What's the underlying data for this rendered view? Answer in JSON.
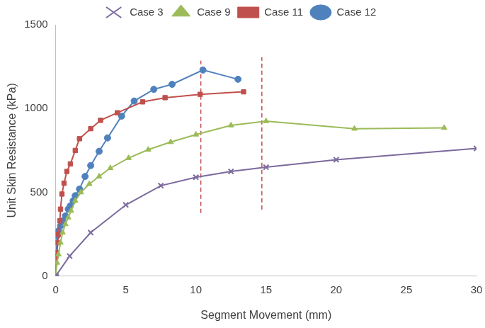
{
  "chart_data": {
    "type": "line",
    "x_label": "Segment Movement (mm)",
    "y_label": "Unit Skin Resistance (kPa)",
    "xlim": [
      0,
      30
    ],
    "xticks": [
      0,
      5,
      10,
      15,
      20,
      25,
      30
    ],
    "ylim": [
      0,
      1500
    ],
    "yticks": [
      0,
      500,
      1000,
      1500
    ],
    "grid": false,
    "legend": "top",
    "series": [
      {
        "name": "Case 3",
        "color": "#7b6a9c",
        "marker": "x",
        "x": [
          0,
          1,
          2.5,
          5,
          7.5,
          10,
          12.5,
          15,
          20,
          30
        ],
        "values": [
          0,
          120,
          260,
          425,
          540,
          590,
          625,
          650,
          695,
          762
        ]
      },
      {
        "name": "Case 9",
        "color": "#9bbb59",
        "marker": "triangle",
        "x": [
          0,
          0.1,
          0.2,
          0.35,
          0.5,
          0.7,
          0.9,
          1.1,
          1.4,
          1.8,
          2.4,
          3.1,
          3.9,
          5.2,
          6.6,
          8.2,
          10,
          12.5,
          15,
          21.3,
          27.7
        ],
        "values": [
          0,
          80,
          130,
          200,
          260,
          310,
          350,
          390,
          450,
          500,
          550,
          595,
          645,
          705,
          755,
          800,
          845,
          900,
          925,
          880,
          885
        ]
      },
      {
        "name": "Case 11",
        "color": "#c0504d",
        "marker": "square",
        "x": [
          0,
          0.05,
          0.1,
          0.15,
          0.2,
          0.3,
          0.35,
          0.45,
          0.6,
          0.8,
          1.05,
          1.4,
          1.7,
          2.5,
          3.2,
          4.4,
          6.2,
          7.8,
          10.3,
          13.4
        ],
        "values": [
          0,
          120,
          140,
          200,
          250,
          330,
          400,
          490,
          555,
          625,
          670,
          750,
          820,
          880,
          930,
          975,
          1040,
          1065,
          1085,
          1100
        ]
      },
      {
        "name": "Case 12",
        "color": "#4f81bd",
        "marker": "circle",
        "x": [
          0,
          0.1,
          0.2,
          0.35,
          0.5,
          0.7,
          0.9,
          1.05,
          1.25,
          1.4,
          1.7,
          2.1,
          2.5,
          3.1,
          3.7,
          4.7,
          5.6,
          7,
          8.3,
          10.5,
          13
        ],
        "values": [
          0,
          240,
          270,
          300,
          330,
          360,
          400,
          420,
          450,
          480,
          520,
          595,
          660,
          745,
          825,
          955,
          1045,
          1115,
          1145,
          1230,
          1175
        ]
      }
    ],
    "vlines": [
      {
        "x": 10.35,
        "y": [
          376,
          1285
        ],
        "color": "#c0504d",
        "line_style": "dashed"
      },
      {
        "x": 14.7,
        "y": [
          398,
          1307
        ],
        "color": "#c0504d",
        "line_style": "dashed"
      }
    ]
  }
}
